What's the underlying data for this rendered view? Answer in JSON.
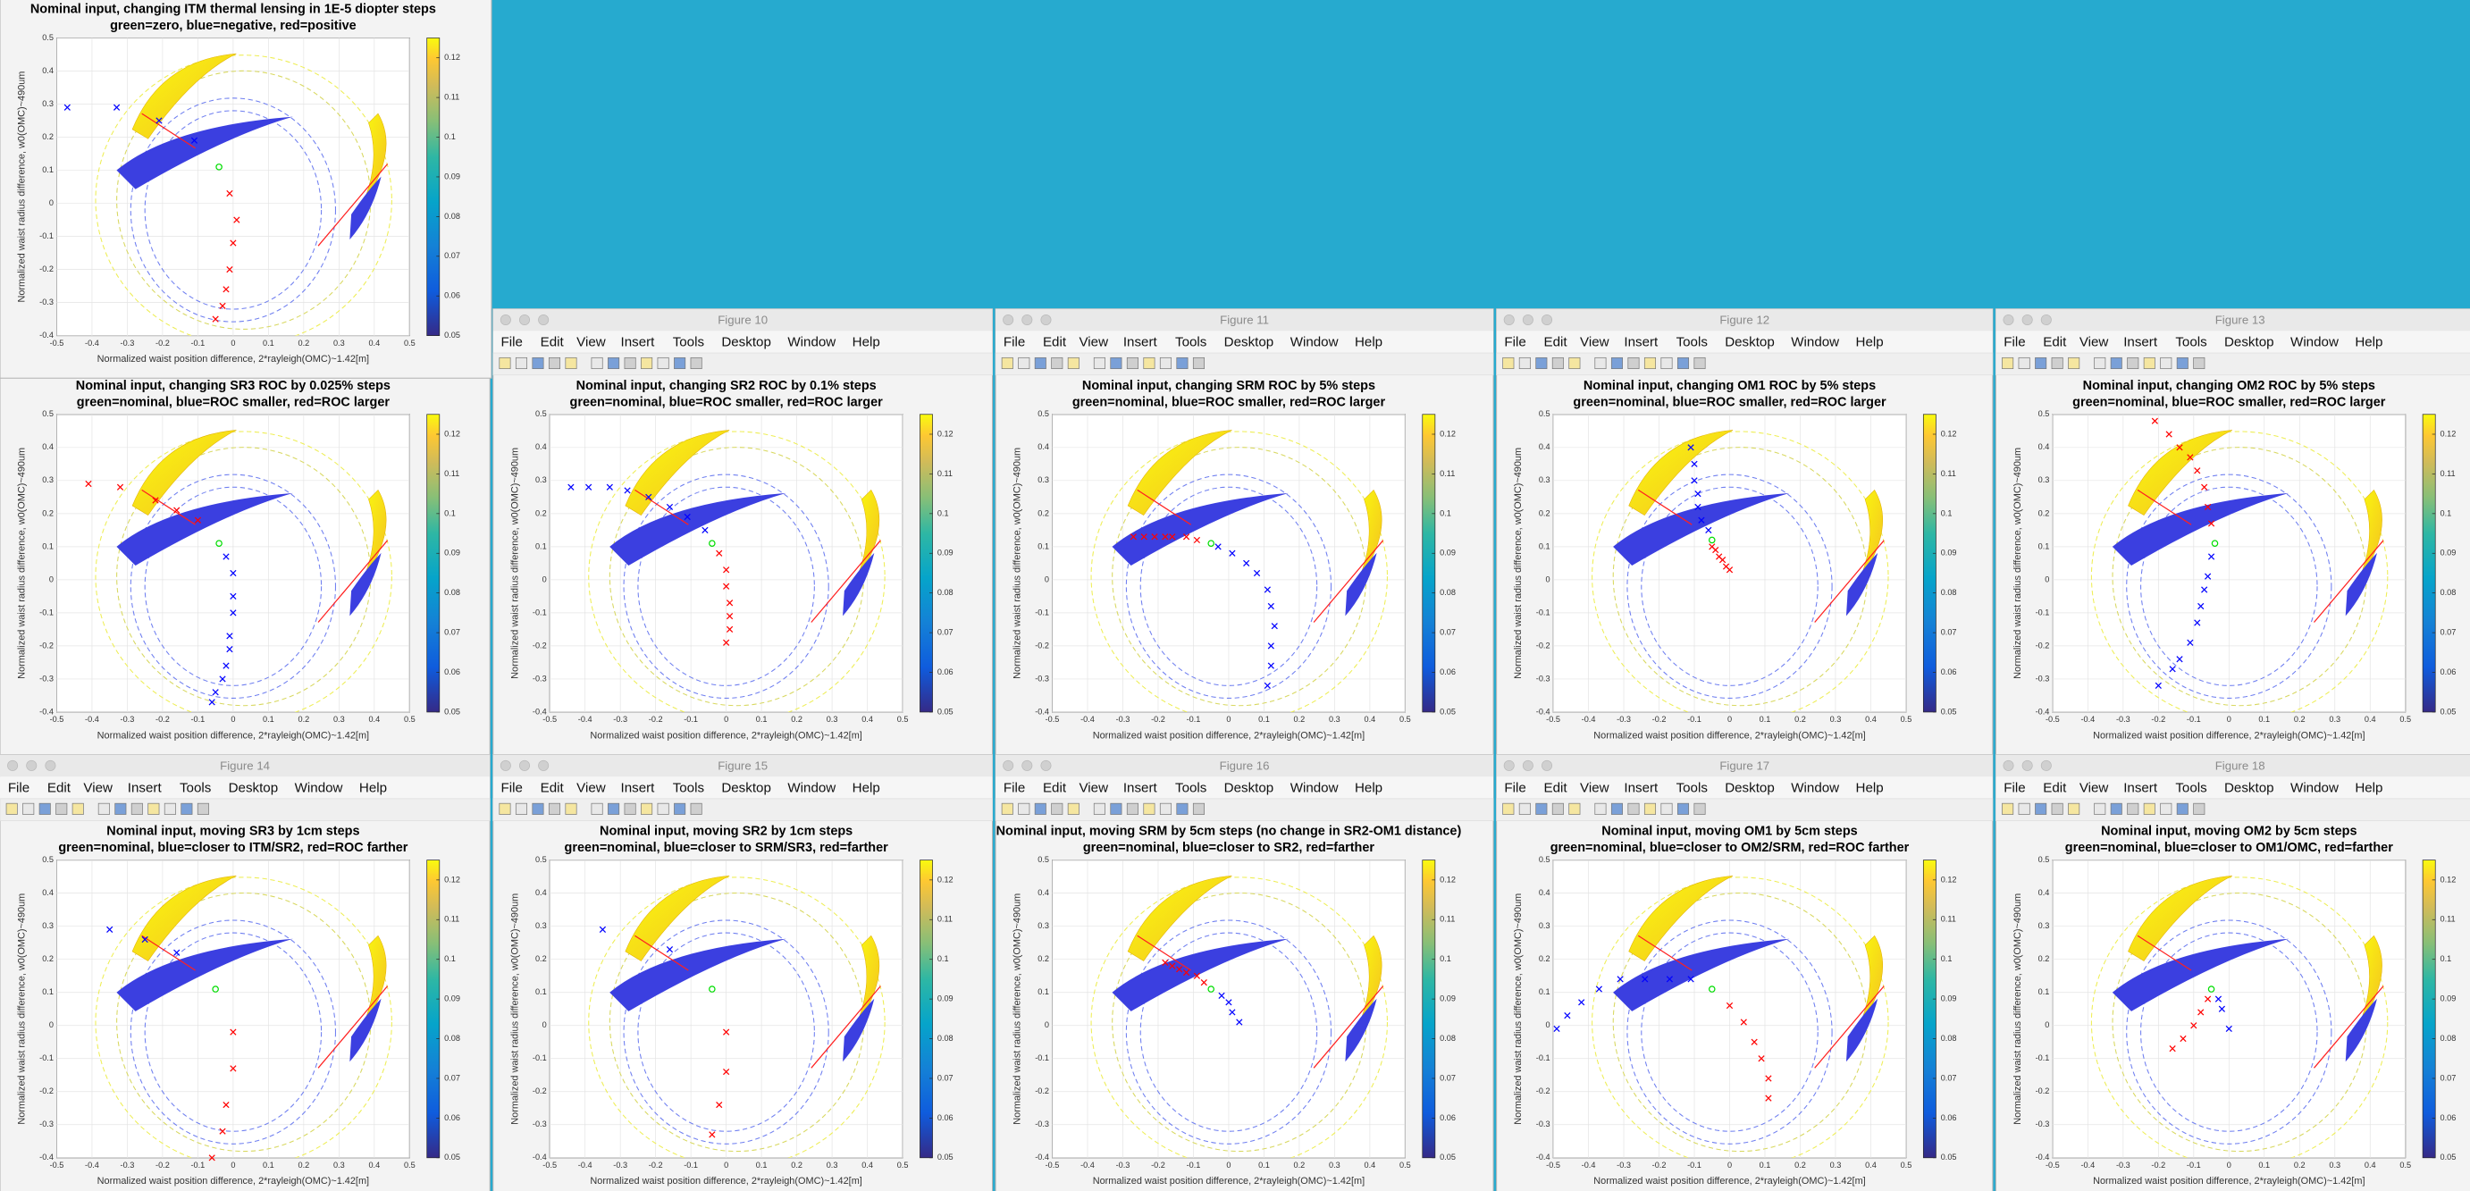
{
  "menu": [
    "File",
    "Edit",
    "View",
    "Insert",
    "Tools",
    "Desktop",
    "Window",
    "Help"
  ],
  "axes": {
    "xlabel": "Normalized waist position difference, 2*rayleigh(OMC)~1.42[m]",
    "ylabel": "Normalized waist radius difference, w0(OMC)~490um",
    "xlim": [
      -0.5,
      0.5
    ],
    "xticks": [
      -0.5,
      -0.4,
      -0.3,
      -0.2,
      -0.1,
      0,
      0.1,
      0.2,
      0.3,
      0.4,
      0.5
    ],
    "ylim": [
      -0.4,
      0.5
    ],
    "yticks": [
      -0.4,
      -0.3,
      -0.2,
      -0.1,
      0,
      0.1,
      0.2,
      0.3,
      0.4,
      0.5
    ],
    "grid": true,
    "colorbar": {
      "clim": [
        0.05,
        0.125
      ],
      "ticks": [
        0.05,
        0.06,
        0.07,
        0.08,
        0.09,
        0.1,
        0.11,
        0.12
      ]
    }
  },
  "marker_colors": {
    "green": "#00dd00",
    "blue": "#0000ff",
    "red": "#ff0000"
  },
  "figures": [
    {
      "title": [
        "Nominal input, changing ITM thermal lensing in 1E-5 diopter steps",
        "green=zero, blue=negative, red=positive"
      ],
      "green": [
        [
          -0.04,
          0.11
        ]
      ],
      "blue": [
        [
          -0.47,
          0.29
        ],
        [
          -0.33,
          0.29
        ],
        [
          -0.21,
          0.25
        ],
        [
          -0.11,
          0.19
        ]
      ],
      "red": [
        [
          -0.01,
          0.03
        ],
        [
          0.01,
          -0.05
        ],
        [
          0,
          -0.12
        ],
        [
          -0.01,
          -0.2
        ],
        [
          -0.02,
          -0.26
        ],
        [
          -0.03,
          -0.31
        ],
        [
          -0.05,
          -0.35
        ]
      ]
    },
    {
      "title": [
        "Nominal input, changing SR3 ROC by 0.025% steps",
        "green=nominal, blue=ROC smaller, red=ROC larger"
      ],
      "green": [
        [
          -0.04,
          0.11
        ]
      ],
      "blue": [
        [
          -0.02,
          0.07
        ],
        [
          0,
          0.02
        ],
        [
          0,
          -0.05
        ],
        [
          0,
          -0.1
        ],
        [
          -0.01,
          -0.17
        ],
        [
          -0.01,
          -0.21
        ],
        [
          -0.02,
          -0.26
        ],
        [
          -0.03,
          -0.3
        ],
        [
          -0.05,
          -0.34
        ],
        [
          -0.06,
          -0.37
        ]
      ],
      "red": [
        [
          -0.41,
          0.29
        ],
        [
          -0.32,
          0.28
        ],
        [
          -0.22,
          0.24
        ],
        [
          -0.16,
          0.21
        ],
        [
          -0.1,
          0.18
        ]
      ]
    },
    {
      "window_title": "Figure 10",
      "title": [
        "Nominal input, changing SR2 ROC by 0.1% steps",
        "green=nominal, blue=ROC smaller, red=ROC larger"
      ],
      "green": [
        [
          -0.04,
          0.11
        ]
      ],
      "blue": [
        [
          -0.44,
          0.28
        ],
        [
          -0.39,
          0.28
        ],
        [
          -0.33,
          0.28
        ],
        [
          -0.28,
          0.27
        ],
        [
          -0.22,
          0.25
        ],
        [
          -0.16,
          0.22
        ],
        [
          -0.11,
          0.19
        ],
        [
          -0.06,
          0.15
        ]
      ],
      "red": [
        [
          -0.02,
          0.08
        ],
        [
          0,
          0.03
        ],
        [
          0,
          -0.02
        ],
        [
          0.01,
          -0.07
        ],
        [
          0.01,
          -0.11
        ],
        [
          0.01,
          -0.15
        ],
        [
          0,
          -0.19
        ]
      ]
    },
    {
      "window_title": "Figure 11",
      "title": [
        "Nominal input, changing SRM ROC by 5% steps",
        "green=nominal, blue=ROC smaller, red=ROC larger"
      ],
      "green": [
        [
          -0.05,
          0.11
        ]
      ],
      "blue": [
        [
          -0.03,
          0.1
        ],
        [
          0.01,
          0.08
        ],
        [
          0.05,
          0.05
        ],
        [
          0.08,
          0.02
        ],
        [
          0.11,
          -0.03
        ],
        [
          0.12,
          -0.08
        ],
        [
          0.13,
          -0.14
        ],
        [
          0.12,
          -0.2
        ],
        [
          0.12,
          -0.26
        ],
        [
          0.11,
          -0.32
        ]
      ],
      "red": [
        [
          -0.27,
          0.13
        ],
        [
          -0.24,
          0.13
        ],
        [
          -0.21,
          0.13
        ],
        [
          -0.18,
          0.13
        ],
        [
          -0.16,
          0.13
        ],
        [
          -0.12,
          0.13
        ],
        [
          -0.09,
          0.12
        ]
      ]
    },
    {
      "window_title": "Figure 12",
      "title": [
        "Nominal input, changing OM1 ROC by 5% steps",
        "green=nominal, blue=ROC smaller, red=ROC larger"
      ],
      "green": [
        [
          -0.05,
          0.12
        ]
      ],
      "blue": [
        [
          -0.11,
          0.4
        ],
        [
          -0.1,
          0.35
        ],
        [
          -0.1,
          0.3
        ],
        [
          -0.09,
          0.26
        ],
        [
          -0.09,
          0.22
        ],
        [
          -0.08,
          0.18
        ],
        [
          -0.06,
          0.15
        ]
      ],
      "red": [
        [
          -0.05,
          0.1
        ],
        [
          -0.04,
          0.09
        ],
        [
          -0.03,
          0.07
        ],
        [
          -0.02,
          0.06
        ],
        [
          -0.01,
          0.04
        ],
        [
          0,
          0.03
        ]
      ]
    },
    {
      "window_title": "Figure 13",
      "title": [
        "Nominal input, changing OM2 ROC by 5% steps",
        "green=nominal, blue=ROC smaller, red=ROC larger"
      ],
      "green": [
        [
          -0.04,
          0.11
        ]
      ],
      "blue": [
        [
          -0.05,
          0.07
        ],
        [
          -0.06,
          0.01
        ],
        [
          -0.07,
          -0.03
        ],
        [
          -0.08,
          -0.08
        ],
        [
          -0.09,
          -0.13
        ],
        [
          -0.11,
          -0.19
        ],
        [
          -0.14,
          -0.24
        ],
        [
          -0.16,
          -0.27
        ],
        [
          -0.2,
          -0.32
        ]
      ],
      "red": [
        [
          -0.21,
          0.48
        ],
        [
          -0.17,
          0.44
        ],
        [
          -0.14,
          0.4
        ],
        [
          -0.11,
          0.37
        ],
        [
          -0.09,
          0.33
        ],
        [
          -0.07,
          0.28
        ],
        [
          -0.06,
          0.22
        ],
        [
          -0.05,
          0.17
        ]
      ]
    },
    {
      "window_title": "Figure 14",
      "title": [
        "Nominal input, moving SR3 by 1cm steps",
        "green=nominal, blue=closer to ITM/SR2, red=ROC farther"
      ],
      "green": [
        [
          -0.05,
          0.11
        ]
      ],
      "blue": [
        [
          -0.35,
          0.29
        ],
        [
          -0.25,
          0.26
        ],
        [
          -0.16,
          0.22
        ]
      ],
      "red": [
        [
          0,
          -0.02
        ],
        [
          0,
          -0.13
        ],
        [
          -0.02,
          -0.24
        ],
        [
          -0.03,
          -0.32
        ],
        [
          -0.06,
          -0.4
        ]
      ]
    },
    {
      "window_title": "Figure 15",
      "title": [
        "Nominal input, moving SR2 by 1cm steps",
        "green=nominal, blue=closer to SRM/SR3, red=farther"
      ],
      "green": [
        [
          -0.04,
          0.11
        ]
      ],
      "blue": [
        [
          -0.35,
          0.29
        ],
        [
          -0.16,
          0.23
        ]
      ],
      "red": [
        [
          0,
          -0.02
        ],
        [
          0,
          -0.14
        ],
        [
          -0.02,
          -0.24
        ],
        [
          -0.04,
          -0.33
        ]
      ]
    },
    {
      "window_title": "Figure 16",
      "title": [
        "Nominal input, moving SRM by 5cm steps (no change in SR2-OM1 distance)",
        "green=nominal, blue=closer to SR2, red=farther"
      ],
      "green": [
        [
          -0.05,
          0.11
        ]
      ],
      "blue": [
        [
          -0.02,
          0.09
        ],
        [
          0,
          0.07
        ],
        [
          0.01,
          0.04
        ],
        [
          0.03,
          0.01
        ]
      ],
      "red": [
        [
          -0.18,
          0.19
        ],
        [
          -0.16,
          0.18
        ],
        [
          -0.14,
          0.17
        ],
        [
          -0.12,
          0.16
        ],
        [
          -0.09,
          0.15
        ],
        [
          -0.07,
          0.13
        ]
      ]
    },
    {
      "window_title": "Figure 17",
      "title": [
        "Nominal input, moving OM1 by 5cm steps",
        "green=nominal, blue=closer to OM2/SRM, red=ROC farther"
      ],
      "green": [
        [
          -0.05,
          0.11
        ]
      ],
      "blue": [
        [
          -0.49,
          -0.01
        ],
        [
          -0.46,
          0.03
        ],
        [
          -0.42,
          0.07
        ],
        [
          -0.37,
          0.11
        ],
        [
          -0.31,
          0.14
        ],
        [
          -0.24,
          0.14
        ],
        [
          -0.17,
          0.14
        ],
        [
          -0.11,
          0.14
        ]
      ],
      "red": [
        [
          0,
          0.06
        ],
        [
          0.04,
          0.01
        ],
        [
          0.07,
          -0.05
        ],
        [
          0.09,
          -0.1
        ],
        [
          0.11,
          -0.16
        ],
        [
          0.11,
          -0.22
        ]
      ]
    },
    {
      "window_title": "Figure 18",
      "title": [
        "Nominal input, moving OM2 by 5cm steps",
        "green=nominal, blue=closer to OM1/OMC, red=farther"
      ],
      "green": [
        [
          -0.05,
          0.11
        ]
      ],
      "blue": [
        [
          -0.03,
          0.08
        ],
        [
          -0.02,
          0.05
        ],
        [
          0,
          -0.01
        ]
      ],
      "red": [
        [
          -0.16,
          -0.07
        ],
        [
          -0.13,
          -0.04
        ],
        [
          -0.1,
          0
        ],
        [
          -0.08,
          0.04
        ],
        [
          -0.06,
          0.08
        ]
      ]
    }
  ]
}
